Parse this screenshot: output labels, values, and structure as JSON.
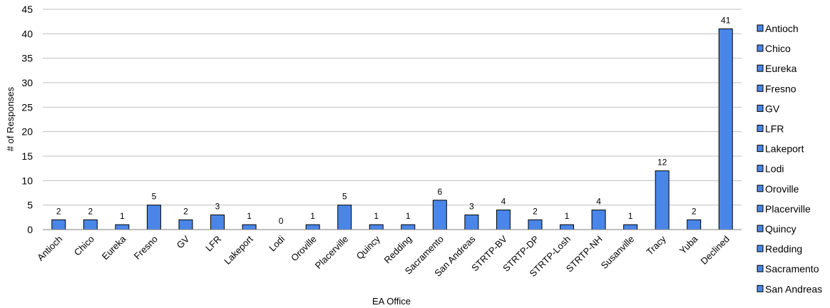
{
  "chart_data": {
    "type": "bar",
    "title": "",
    "xlabel": "EA Office",
    "ylabel": "# of Responses",
    "ylim": [
      0,
      45
    ],
    "y_ticks": [
      0,
      5,
      10,
      15,
      20,
      25,
      30,
      35,
      40,
      45
    ],
    "grid": true,
    "legend_position": "right",
    "bar_color": "#4A86E8",
    "bar_edge_color": "#000000",
    "categories": [
      "Antioch",
      "Chico",
      "Eureka",
      "Fresno",
      "GV",
      "LFR",
      "Lakeport",
      "Lodi",
      "Oroville",
      "Placerville",
      "Quincy",
      "Redding",
      "Sacramento",
      "San Andreas",
      "STRTP-BV",
      "STRTP-DP",
      "STRTP-Losh",
      "STRTP-NH",
      "Susanville",
      "Tracy",
      "Yuba",
      "Declined"
    ],
    "values": [
      2,
      2,
      1,
      5,
      2,
      3,
      1,
      0,
      1,
      5,
      1,
      1,
      6,
      3,
      4,
      2,
      1,
      4,
      1,
      12,
      2,
      41
    ],
    "data_labels": [
      "2",
      "2",
      "1",
      "5",
      "2",
      "3",
      "1",
      "0",
      "1",
      "5",
      "1",
      "1",
      "6",
      "3",
      "4",
      "2",
      "1",
      "4",
      "1",
      "12",
      "2",
      "41"
    ],
    "legend": [
      "Antioch",
      "Chico",
      "Eureka",
      "Fresno",
      "GV",
      "LFR",
      "Lakeport",
      "Lodi",
      "Oroville",
      "Placerville",
      "Quincy",
      "Redding",
      "Sacramento",
      "San Andreas"
    ]
  }
}
